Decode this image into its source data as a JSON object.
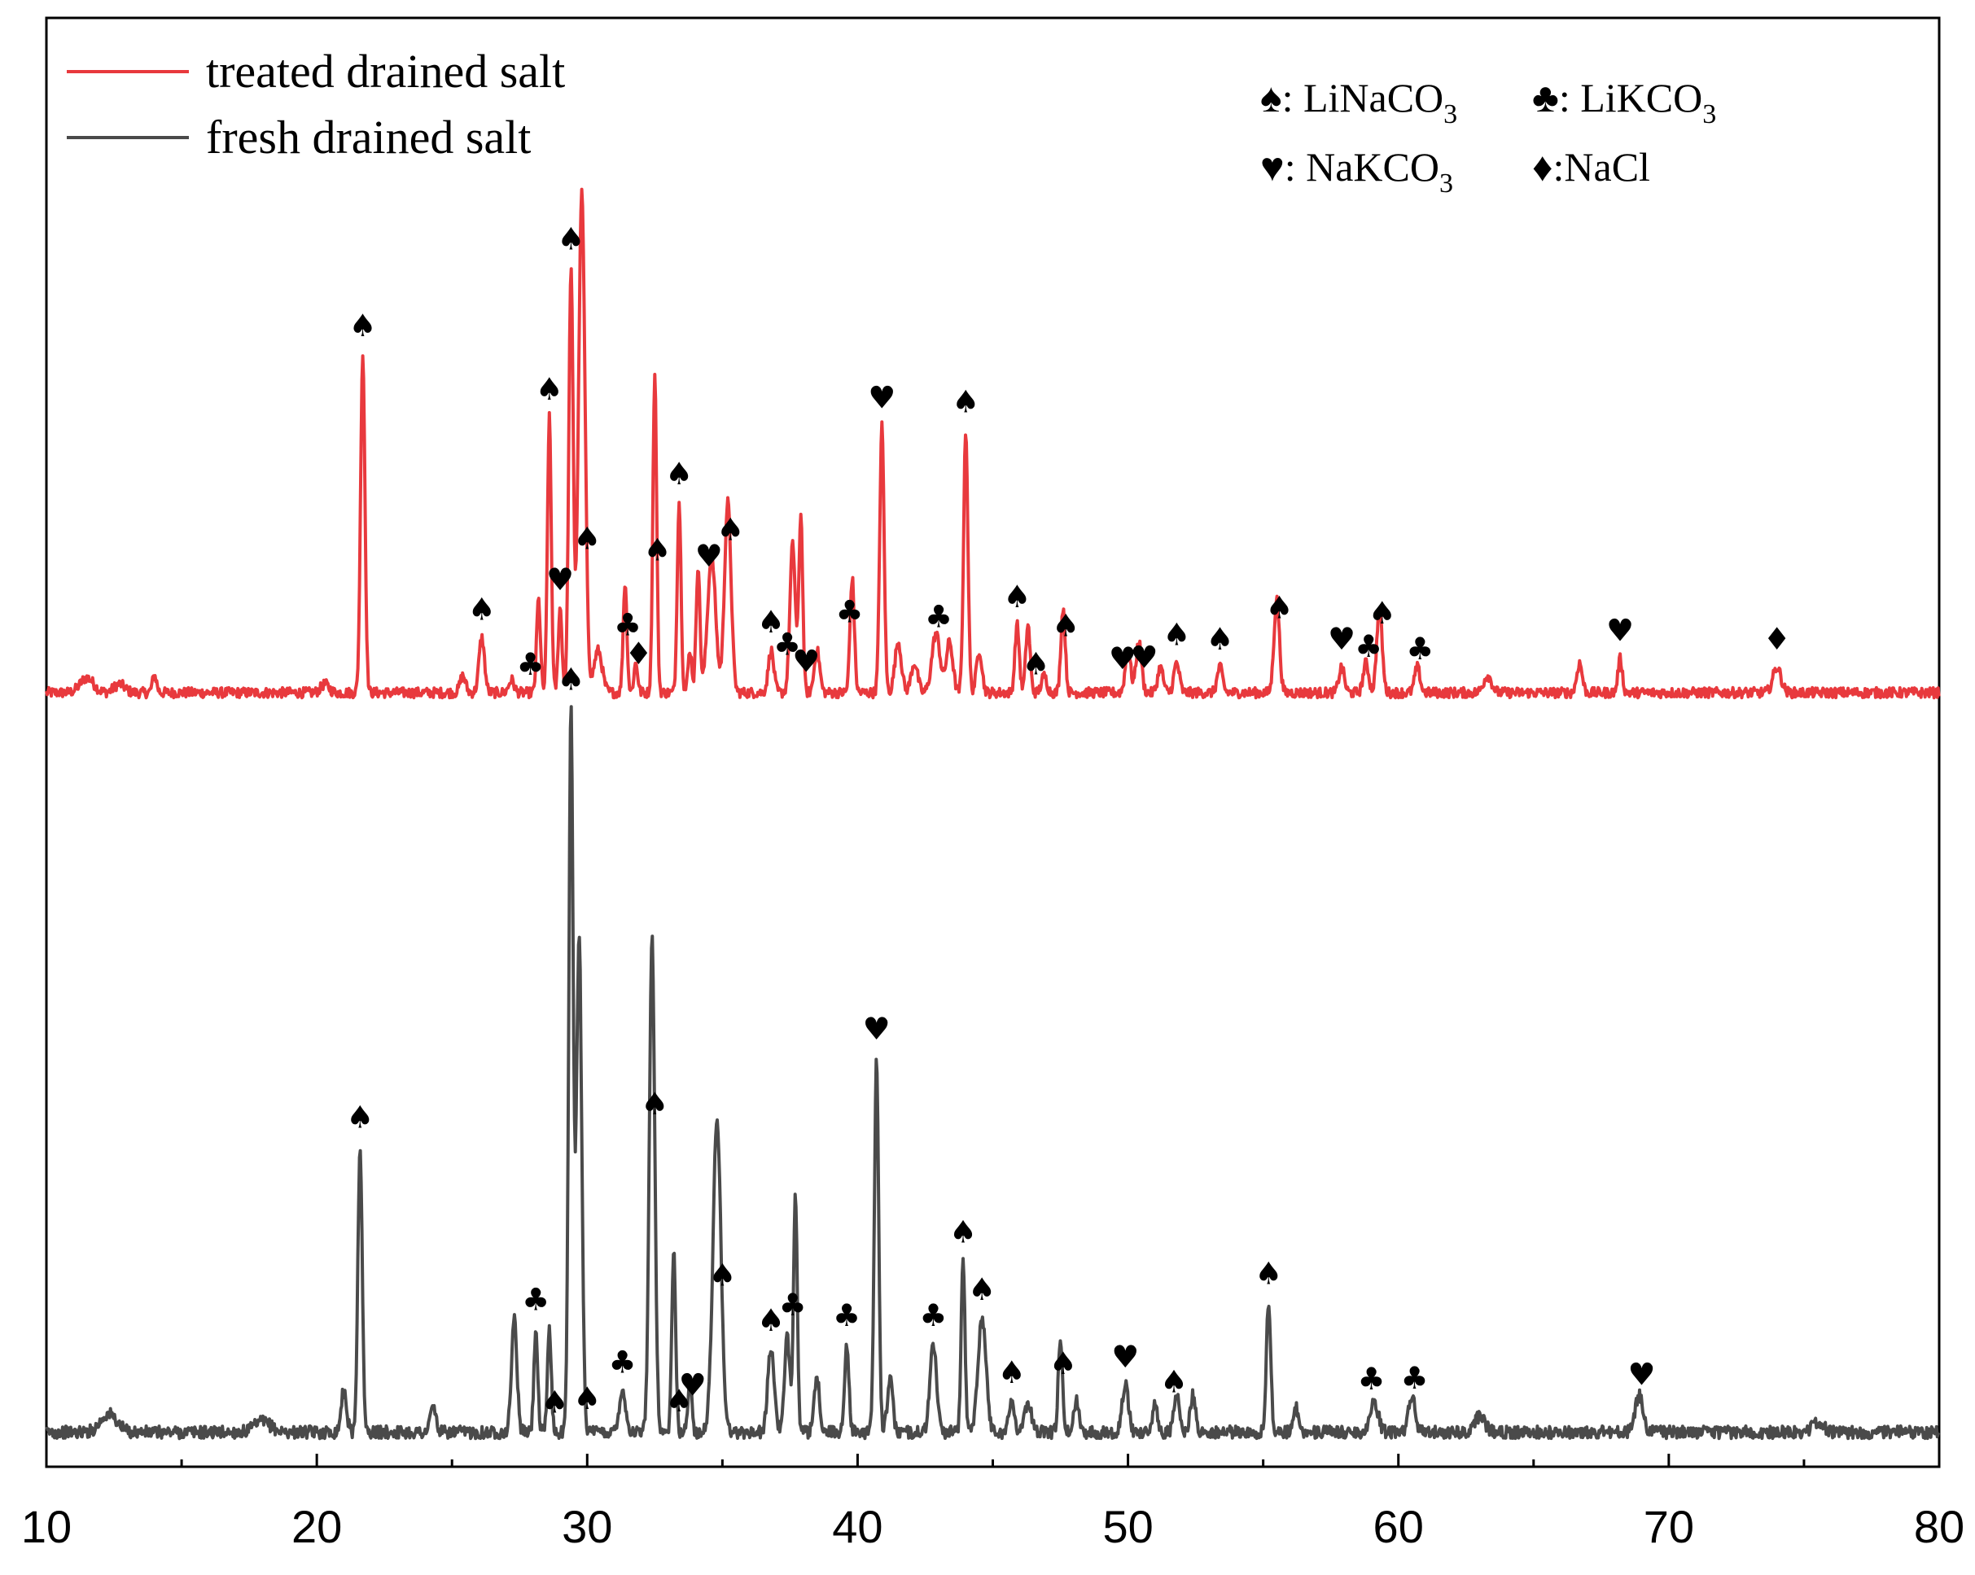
{
  "chart_data": {
    "type": "line",
    "xlim": [
      10,
      80
    ],
    "x_ticks": [
      "10",
      "20",
      "30",
      "40",
      "50",
      "60",
      "70",
      "80"
    ],
    "xlabel": "",
    "ylabel": "",
    "grid": false,
    "legend_position": "top-left",
    "series": [
      {
        "name": "treated drained salt",
        "color": "#e8393d",
        "baseline": 0.05,
        "noise": 0.012,
        "peaks": [
          [
            11.5,
            0.035,
            0.25
          ],
          [
            12.7,
            0.02,
            0.2
          ],
          [
            14.0,
            0.04,
            0.08
          ],
          [
            20.3,
            0.02,
            0.15
          ],
          [
            21.7,
            0.8,
            0.08
          ],
          [
            25.4,
            0.04,
            0.1
          ],
          [
            26.1,
            0.13,
            0.1
          ],
          [
            27.2,
            0.03,
            0.1
          ],
          [
            28.2,
            0.22,
            0.07
          ],
          [
            28.6,
            0.65,
            0.07
          ],
          [
            29.0,
            0.2,
            0.07
          ],
          [
            29.4,
            1.0,
            0.08
          ],
          [
            29.8,
            1.18,
            0.12
          ],
          [
            30.4,
            0.1,
            0.15
          ],
          [
            31.4,
            0.26,
            0.07
          ],
          [
            31.8,
            0.07,
            0.07
          ],
          [
            32.5,
            0.75,
            0.07
          ],
          [
            33.4,
            0.45,
            0.07
          ],
          [
            33.8,
            0.1,
            0.07
          ],
          [
            34.1,
            0.3,
            0.07
          ],
          [
            34.6,
            0.32,
            0.15
          ],
          [
            35.2,
            0.45,
            0.12
          ],
          [
            36.8,
            0.1,
            0.1
          ],
          [
            37.6,
            0.35,
            0.1
          ],
          [
            37.9,
            0.42,
            0.07
          ],
          [
            38.5,
            0.1,
            0.1
          ],
          [
            39.8,
            0.27,
            0.08
          ],
          [
            40.9,
            0.63,
            0.08
          ],
          [
            41.5,
            0.12,
            0.12
          ],
          [
            42.1,
            0.07,
            0.12
          ],
          [
            42.9,
            0.14,
            0.15
          ],
          [
            43.4,
            0.12,
            0.12
          ],
          [
            44.0,
            0.62,
            0.08
          ],
          [
            44.5,
            0.1,
            0.1
          ],
          [
            45.9,
            0.16,
            0.08
          ],
          [
            46.3,
            0.16,
            0.08
          ],
          [
            46.9,
            0.04,
            0.1
          ],
          [
            47.6,
            0.2,
            0.08
          ],
          [
            50.0,
            0.1,
            0.1
          ],
          [
            50.4,
            0.12,
            0.1
          ],
          [
            51.2,
            0.06,
            0.1
          ],
          [
            51.8,
            0.07,
            0.1
          ],
          [
            53.4,
            0.06,
            0.1
          ],
          [
            55.5,
            0.22,
            0.1
          ],
          [
            57.9,
            0.06,
            0.1
          ],
          [
            58.8,
            0.07,
            0.1
          ],
          [
            59.3,
            0.2,
            0.1
          ],
          [
            60.7,
            0.06,
            0.1
          ],
          [
            63.3,
            0.04,
            0.15
          ],
          [
            66.7,
            0.07,
            0.1
          ],
          [
            68.2,
            0.08,
            0.08
          ],
          [
            74.0,
            0.06,
            0.15
          ]
        ]
      },
      {
        "name": "fresh drained salt",
        "color": "#4a4a4a",
        "baseline": 0.035,
        "noise": 0.012,
        "peaks": [
          [
            12.3,
            0.035,
            0.3
          ],
          [
            18.0,
            0.02,
            0.3
          ],
          [
            21.0,
            0.08,
            0.1
          ],
          [
            21.6,
            0.55,
            0.08
          ],
          [
            24.3,
            0.05,
            0.1
          ],
          [
            27.3,
            0.22,
            0.1
          ],
          [
            28.1,
            0.2,
            0.07
          ],
          [
            28.6,
            0.2,
            0.07
          ],
          [
            29.4,
            1.38,
            0.08
          ],
          [
            29.7,
            0.95,
            0.1
          ],
          [
            31.3,
            0.08,
            0.12
          ],
          [
            32.4,
            0.95,
            0.1
          ],
          [
            33.2,
            0.35,
            0.07
          ],
          [
            33.8,
            0.1,
            0.07
          ],
          [
            34.8,
            0.6,
            0.15
          ],
          [
            36.8,
            0.16,
            0.12
          ],
          [
            37.4,
            0.18,
            0.1
          ],
          [
            37.7,
            0.46,
            0.07
          ],
          [
            38.5,
            0.1,
            0.1
          ],
          [
            39.6,
            0.17,
            0.08
          ],
          [
            40.7,
            0.72,
            0.08
          ],
          [
            41.2,
            0.1,
            0.1
          ],
          [
            42.8,
            0.17,
            0.12
          ],
          [
            43.9,
            0.33,
            0.07
          ],
          [
            44.6,
            0.22,
            0.15
          ],
          [
            45.7,
            0.06,
            0.1
          ],
          [
            46.3,
            0.05,
            0.15
          ],
          [
            47.5,
            0.17,
            0.08
          ],
          [
            48.1,
            0.06,
            0.1
          ],
          [
            49.9,
            0.09,
            0.12
          ],
          [
            51.0,
            0.05,
            0.1
          ],
          [
            51.8,
            0.07,
            0.1
          ],
          [
            52.4,
            0.07,
            0.1
          ],
          [
            55.2,
            0.25,
            0.08
          ],
          [
            56.2,
            0.05,
            0.1
          ],
          [
            59.1,
            0.06,
            0.15
          ],
          [
            60.5,
            0.07,
            0.12
          ],
          [
            63.0,
            0.03,
            0.2
          ],
          [
            68.9,
            0.07,
            0.15
          ],
          [
            75.5,
            0.02,
            0.2
          ]
        ]
      }
    ],
    "phase_key": [
      [
        "♠",
        ": LiNaCO",
        "3"
      ],
      [
        "♣",
        ": LiKCO",
        "3"
      ],
      [
        "♥",
        ": NaKCO",
        "3"
      ],
      [
        "♦",
        ":NaCl",
        ""
      ]
    ],
    "annotations": [
      {
        "series": 0,
        "x": 21.7,
        "symbol": "♠"
      },
      {
        "series": 0,
        "x": 26.1,
        "symbol": "♠"
      },
      {
        "series": 0,
        "x": 27.9,
        "symbol": "♣"
      },
      {
        "series": 0,
        "x": 29.0,
        "symbol": "♥"
      },
      {
        "series": 0,
        "x": 28.6,
        "symbol": "♠"
      },
      {
        "series": 0,
        "x": 29.4,
        "symbol": "♠"
      },
      {
        "series": 0,
        "x": 30.0,
        "symbol": "♠"
      },
      {
        "series": 0,
        "x": 31.5,
        "symbol": "♣"
      },
      {
        "series": 0,
        "x": 31.9,
        "symbol": "♦"
      },
      {
        "series": 0,
        "x": 32.6,
        "symbol": "♠"
      },
      {
        "series": 0,
        "x": 33.4,
        "symbol": "♠"
      },
      {
        "series": 0,
        "x": 34.5,
        "symbol": "♥"
      },
      {
        "series": 0,
        "x": 35.3,
        "symbol": "♠"
      },
      {
        "series": 0,
        "x": 36.8,
        "symbol": "♠"
      },
      {
        "series": 0,
        "x": 37.4,
        "symbol": "♣"
      },
      {
        "series": 0,
        "x": 38.1,
        "symbol": "♥"
      },
      {
        "series": 0,
        "x": 39.7,
        "symbol": "♣"
      },
      {
        "series": 0,
        "x": 40.9,
        "symbol": "♥"
      },
      {
        "series": 0,
        "x": 43.0,
        "symbol": "♣"
      },
      {
        "series": 0,
        "x": 44.0,
        "symbol": "♠"
      },
      {
        "series": 0,
        "x": 45.9,
        "symbol": "♠"
      },
      {
        "series": 0,
        "x": 46.6,
        "symbol": "♠"
      },
      {
        "series": 0,
        "x": 47.7,
        "symbol": "♠"
      },
      {
        "series": 0,
        "x": 49.8,
        "symbol": "♥"
      },
      {
        "series": 0,
        "x": 50.6,
        "symbol": "♥"
      },
      {
        "series": 0,
        "x": 51.8,
        "symbol": "♠"
      },
      {
        "series": 0,
        "x": 53.4,
        "symbol": "♠"
      },
      {
        "series": 0,
        "x": 55.6,
        "symbol": "♠"
      },
      {
        "series": 0,
        "x": 57.9,
        "symbol": "♥"
      },
      {
        "series": 0,
        "x": 58.9,
        "symbol": "♣"
      },
      {
        "series": 0,
        "x": 59.4,
        "symbol": "♠"
      },
      {
        "series": 0,
        "x": 60.8,
        "symbol": "♣"
      },
      {
        "series": 0,
        "x": 68.2,
        "symbol": "♥"
      },
      {
        "series": 0,
        "x": 74.0,
        "symbol": "♦"
      },
      {
        "series": 1,
        "x": 21.6,
        "symbol": "♠"
      },
      {
        "series": 1,
        "x": 28.1,
        "symbol": "♣"
      },
      {
        "series": 1,
        "x": 28.8,
        "symbol": "♠"
      },
      {
        "series": 1,
        "x": 29.4,
        "symbol": "♠"
      },
      {
        "series": 1,
        "x": 30.0,
        "symbol": "♠"
      },
      {
        "series": 1,
        "x": 31.3,
        "symbol": "♣"
      },
      {
        "series": 1,
        "x": 32.5,
        "symbol": "♠"
      },
      {
        "series": 1,
        "x": 33.4,
        "symbol": "♠"
      },
      {
        "series": 1,
        "x": 33.9,
        "symbol": "♥"
      },
      {
        "series": 1,
        "x": 35.0,
        "symbol": "♠"
      },
      {
        "series": 1,
        "x": 36.8,
        "symbol": "♠"
      },
      {
        "series": 1,
        "x": 37.6,
        "symbol": "♣"
      },
      {
        "series": 1,
        "x": 39.6,
        "symbol": "♣"
      },
      {
        "series": 1,
        "x": 40.7,
        "symbol": "♥"
      },
      {
        "series": 1,
        "x": 42.8,
        "symbol": "♣"
      },
      {
        "series": 1,
        "x": 43.9,
        "symbol": "♠"
      },
      {
        "series": 1,
        "x": 44.6,
        "symbol": "♠"
      },
      {
        "series": 1,
        "x": 45.7,
        "symbol": "♠"
      },
      {
        "series": 1,
        "x": 47.6,
        "symbol": "♠"
      },
      {
        "series": 1,
        "x": 49.9,
        "symbol": "♥"
      },
      {
        "series": 1,
        "x": 51.7,
        "symbol": "♠"
      },
      {
        "series": 1,
        "x": 55.2,
        "symbol": "♠"
      },
      {
        "series": 1,
        "x": 59.0,
        "symbol": "♣"
      },
      {
        "series": 1,
        "x": 60.6,
        "symbol": "♣"
      },
      {
        "series": 1,
        "x": 69.0,
        "symbol": "♥"
      }
    ]
  }
}
